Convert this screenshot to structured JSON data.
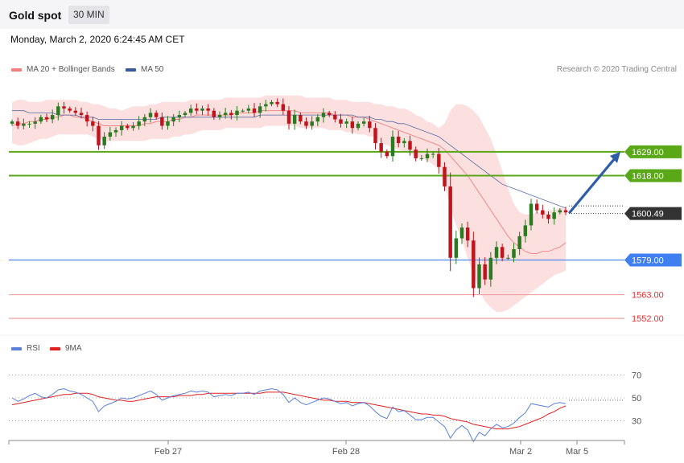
{
  "header": {
    "title": "Gold spot",
    "timeframe": "30 MIN",
    "datetime": "Monday, March 2, 2020 6:24:45 AM CET"
  },
  "legend": {
    "ma20_label": "MA 20 + Bollinger Bands",
    "ma50_label": "MA 50",
    "copyright": "Research © 2020 Trading Central",
    "rsi_label": "RSI",
    "ma9_label": "9MA"
  },
  "colors": {
    "resistance": "#5aa818",
    "support": "#3f7ff0",
    "level_red": "#e33333",
    "up_candle": "#2a7a1f",
    "down_candle": "#c0141c",
    "bollinger": "#fbd9d9",
    "ma20": "#f08080",
    "ma50": "#39589a",
    "arrow": "#2f5da8",
    "rsi": "#5b7fd9",
    "rsi_ma": "#e02020"
  },
  "chart_data": [
    {
      "type": "candlestick",
      "instrument": "Gold spot",
      "ylim": [
        1545,
        1662
      ],
      "x_ticks": [
        "Feb 27",
        "Feb 28",
        "Mar 2",
        "Mar 5"
      ],
      "levels": [
        {
          "name": "resistance-2",
          "value": 1629.0,
          "label": "1629.00",
          "style": "resistance"
        },
        {
          "name": "resistance-1",
          "value": 1618.0,
          "label": "1618.00",
          "style": "resistance"
        },
        {
          "name": "last-price",
          "value": 1600.49,
          "label": "1600.49",
          "style": "price"
        },
        {
          "name": "support-1",
          "value": 1579.0,
          "label": "1579.00",
          "style": "support"
        },
        {
          "name": "support-2",
          "value": 1563.0,
          "label": "1563.00",
          "style": "red"
        },
        {
          "name": "support-3",
          "value": 1552.0,
          "label": "1552.00",
          "style": "red"
        }
      ],
      "close": [
        1643,
        1641,
        1642,
        1642,
        1643,
        1645,
        1644,
        1646,
        1650,
        1649,
        1648,
        1647,
        1646,
        1643,
        1641,
        1632,
        1636,
        1638,
        1639,
        1641,
        1640,
        1641,
        1643,
        1645,
        1647,
        1645,
        1641,
        1643,
        1645,
        1646,
        1647,
        1649,
        1648,
        1649,
        1648,
        1645,
        1646,
        1647,
        1646,
        1648,
        1648,
        1649,
        1647,
        1650,
        1651,
        1652,
        1651,
        1648,
        1642,
        1646,
        1643,
        1641,
        1643,
        1645,
        1647,
        1646,
        1644,
        1642,
        1643,
        1640,
        1642,
        1643,
        1640,
        1633,
        1629,
        1627,
        1636,
        1633,
        1634,
        1630,
        1626,
        1626,
        1628,
        1628,
        1622,
        1613,
        1580,
        1589,
        1594,
        1588,
        1566,
        1577,
        1570,
        1580,
        1585,
        1580,
        1580,
        1584,
        1590,
        1595,
        1605,
        1602,
        1600,
        1598,
        1601,
        1602,
        1601
      ],
      "ma20": [
        1641,
        1642,
        1642,
        1643,
        1643,
        1644,
        1644,
        1645,
        1645,
        1646,
        1646,
        1645,
        1645,
        1644,
        1643,
        1642,
        1641,
        1641,
        1641,
        1641,
        1641,
        1641,
        1641,
        1642,
        1642,
        1643,
        1643,
        1643,
        1644,
        1644,
        1645,
        1645,
        1646,
        1646,
        1646,
        1646,
        1646,
        1646,
        1646,
        1647,
        1647,
        1647,
        1647,
        1648,
        1648,
        1648,
        1648,
        1648,
        1648,
        1648,
        1647,
        1647,
        1647,
        1647,
        1647,
        1647,
        1646,
        1646,
        1646,
        1645,
        1645,
        1645,
        1644,
        1643,
        1642,
        1641,
        1640,
        1639,
        1638,
        1637,
        1636,
        1635,
        1634,
        1633,
        1632,
        1630,
        1627,
        1624,
        1621,
        1618,
        1614,
        1610,
        1606,
        1602,
        1598,
        1594,
        1590,
        1587,
        1585,
        1583,
        1582,
        1582,
        1583,
        1583,
        1584,
        1585,
        1587
      ],
      "bollinger_upper": [
        1652,
        1653,
        1653,
        1652,
        1652,
        1652,
        1653,
        1653,
        1653,
        1653,
        1653,
        1653,
        1652,
        1652,
        1651,
        1651,
        1650,
        1649,
        1649,
        1648,
        1649,
        1650,
        1650,
        1650,
        1651,
        1651,
        1652,
        1652,
        1652,
        1652,
        1652,
        1653,
        1653,
        1653,
        1653,
        1653,
        1653,
        1654,
        1654,
        1654,
        1654,
        1654,
        1654,
        1654,
        1655,
        1655,
        1655,
        1655,
        1655,
        1655,
        1655,
        1654,
        1654,
        1654,
        1654,
        1654,
        1653,
        1653,
        1653,
        1652,
        1652,
        1652,
        1652,
        1651,
        1651,
        1650,
        1650,
        1649,
        1649,
        1648,
        1646,
        1645,
        1643,
        1642,
        1640,
        1642,
        1648,
        1651,
        1651,
        1650,
        1648,
        1645,
        1640,
        1635,
        1628,
        1620,
        1612,
        1605,
        1601,
        1600,
        1600,
        1601,
        1601,
        1602,
        1602,
        1603,
        1603
      ],
      "bollinger_lower": [
        1633,
        1632,
        1632,
        1633,
        1634,
        1635,
        1635,
        1636,
        1637,
        1637,
        1637,
        1637,
        1637,
        1637,
        1636,
        1635,
        1634,
        1634,
        1634,
        1634,
        1634,
        1634,
        1634,
        1634,
        1635,
        1635,
        1635,
        1635,
        1636,
        1636,
        1637,
        1637,
        1638,
        1639,
        1639,
        1639,
        1639,
        1640,
        1640,
        1640,
        1640,
        1640,
        1640,
        1640,
        1641,
        1641,
        1641,
        1641,
        1641,
        1641,
        1640,
        1640,
        1640,
        1640,
        1640,
        1639,
        1639,
        1639,
        1638,
        1638,
        1637,
        1637,
        1636,
        1636,
        1633,
        1632,
        1631,
        1630,
        1629,
        1628,
        1627,
        1626,
        1625,
        1623,
        1621,
        1614,
        1603,
        1595,
        1588,
        1580,
        1572,
        1565,
        1560,
        1557,
        1555,
        1555,
        1556,
        1558,
        1560,
        1562,
        1564,
        1566,
        1568,
        1570,
        1572,
        1573,
        1574
      ],
      "ma50": [
        1648,
        1648,
        1648,
        1647,
        1647,
        1647,
        1647,
        1647,
        1646,
        1646,
        1646,
        1646,
        1645,
        1645,
        1645,
        1644,
        1644,
        1644,
        1644,
        1644,
        1644,
        1644,
        1644,
        1644,
        1644,
        1644,
        1645,
        1645,
        1645,
        1645,
        1645,
        1645,
        1645,
        1645,
        1645,
        1645,
        1645,
        1645,
        1645,
        1645,
        1645,
        1645,
        1645,
        1646,
        1646,
        1646,
        1646,
        1646,
        1646,
        1646,
        1646,
        1646,
        1646,
        1646,
        1646,
        1646,
        1646,
        1646,
        1646,
        1646,
        1645,
        1645,
        1645,
        1644,
        1644,
        1643,
        1643,
        1642,
        1642,
        1641,
        1640,
        1639,
        1638,
        1637,
        1636,
        1634,
        1632,
        1630,
        1628,
        1626,
        1624,
        1622,
        1620,
        1618,
        1616,
        1614,
        1613,
        1612,
        1611,
        1610,
        1609,
        1608,
        1607,
        1606,
        1605,
        1604,
        1603
      ],
      "forecast_target": 1629.0
    },
    {
      "type": "line",
      "name": "RSI",
      "ylim": [
        15,
        85
      ],
      "y_ticks": [
        70,
        50,
        30
      ],
      "series": [
        {
          "name": "RSI",
          "values": [
            50,
            47,
            49,
            52,
            54,
            51,
            50,
            53,
            57,
            58,
            56,
            55,
            53,
            50,
            47,
            38,
            43,
            45,
            47,
            50,
            49,
            50,
            52,
            54,
            56,
            53,
            48,
            50,
            52,
            53,
            54,
            56,
            55,
            56,
            55,
            51,
            52,
            53,
            52,
            54,
            54,
            55,
            53,
            56,
            57,
            58,
            57,
            53,
            46,
            50,
            46,
            44,
            46,
            48,
            50,
            49,
            47,
            45,
            46,
            43,
            45,
            46,
            43,
            38,
            34,
            32,
            42,
            38,
            39,
            35,
            31,
            31,
            33,
            33,
            29,
            25,
            15,
            22,
            26,
            22,
            12,
            20,
            17,
            23,
            27,
            24,
            25,
            28,
            33,
            37,
            45,
            44,
            43,
            42,
            45,
            46,
            45
          ]
        },
        {
          "name": "9MA",
          "values": [
            44,
            45,
            46,
            47,
            48,
            49,
            50,
            51,
            52,
            53,
            53,
            54,
            54,
            54,
            53,
            51,
            50,
            49,
            48,
            48,
            47,
            47,
            48,
            49,
            50,
            51,
            51,
            51,
            51,
            52,
            52,
            52,
            53,
            53,
            54,
            54,
            54,
            54,
            54,
            54,
            54,
            54,
            54,
            54,
            55,
            55,
            55,
            55,
            54,
            53,
            52,
            51,
            50,
            49,
            48,
            48,
            47,
            47,
            47,
            46,
            46,
            46,
            45,
            44,
            43,
            42,
            41,
            40,
            39,
            38,
            37,
            36,
            36,
            35,
            35,
            34,
            32,
            31,
            30,
            29,
            27,
            26,
            25,
            24,
            23,
            23,
            23,
            24,
            25,
            27,
            29,
            31,
            33,
            36,
            38,
            41,
            43
          ]
        }
      ]
    }
  ]
}
